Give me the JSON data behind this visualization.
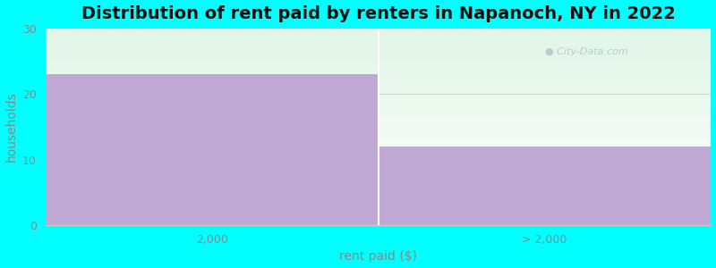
{
  "title": "Distribution of rent paid by renters in Napanoch, NY in 2022",
  "categories": [
    "2,000",
    "> 2,000"
  ],
  "values": [
    23,
    12
  ],
  "bar_color": "#C0A8D4",
  "background_color": "#00FFFF",
  "plot_bg_green": [
    0.88,
    0.96,
    0.9
  ],
  "plot_bg_white": [
    1.0,
    1.0,
    1.0
  ],
  "ylabel": "households",
  "xlabel": "rent paid ($)",
  "ylim": [
    0,
    30
  ],
  "yticks": [
    0,
    10,
    20,
    30
  ],
  "xlim": [
    0,
    2
  ],
  "title_fontsize": 14,
  "axis_label_fontsize": 10,
  "tick_fontsize": 9,
  "watermark": "City-Data.com",
  "label_color": "#888888",
  "title_color": "#111111",
  "grid_color": "#dddddd"
}
